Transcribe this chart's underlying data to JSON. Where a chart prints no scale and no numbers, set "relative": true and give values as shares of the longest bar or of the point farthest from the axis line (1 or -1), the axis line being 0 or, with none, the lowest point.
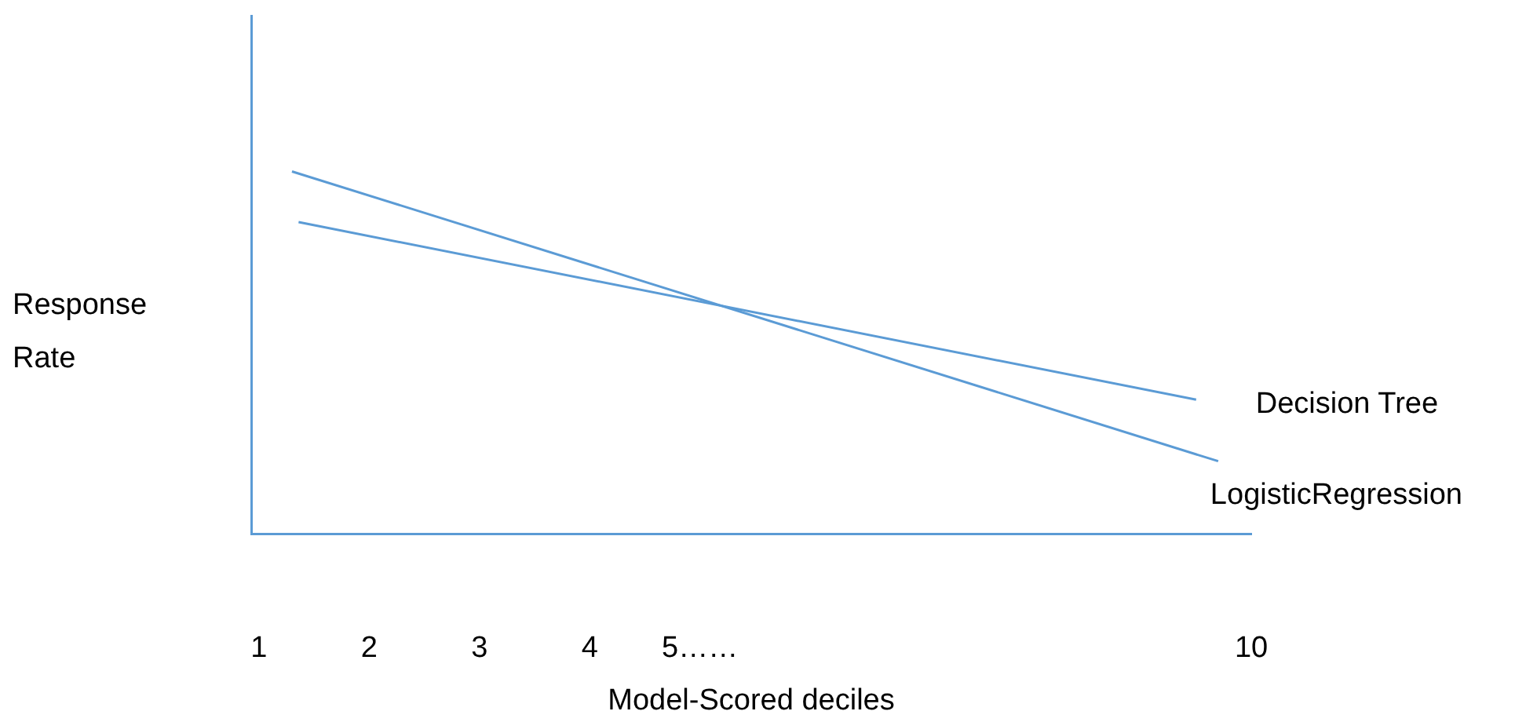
{
  "chart_data": {
    "type": "line",
    "xlabel": "Model-Scored deciles",
    "ylabel": "Response Rate",
    "relative": true,
    "xlim": [
      0.93,
      10
    ],
    "xticks": [
      1,
      2,
      3,
      4,
      {
        "value": 5,
        "label": "5……"
      },
      10
    ],
    "grid": false,
    "legend": false,
    "marker": "none",
    "line_style": "solid",
    "series": [
      {
        "name": "Decision Tree",
        "color": "#5b9bd5",
        "x": [
          1.36,
          9.5
        ],
        "values": [
          0.86,
          0.37
        ]
      },
      {
        "name": "LogisticRegression",
        "color": "#5b9bd5",
        "x": [
          1.3,
          9.7
        ],
        "values": [
          1,
          0.2
        ]
      }
    ]
  }
}
